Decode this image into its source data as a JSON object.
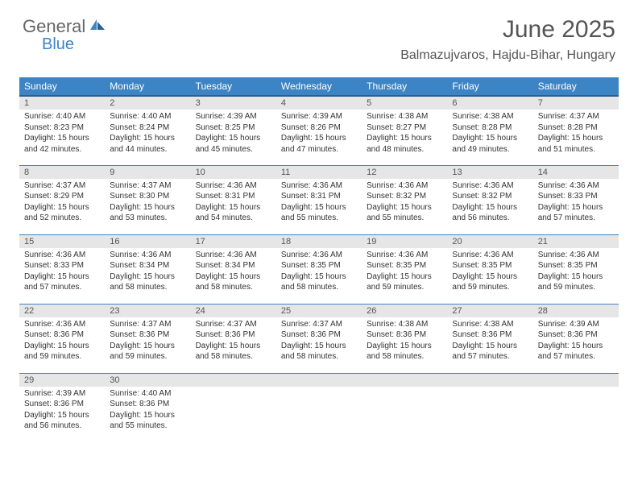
{
  "logo": {
    "text1": "General",
    "text2": "Blue"
  },
  "title": "June 2025",
  "location": "Balmazujvaros, Hajdu-Bihar, Hungary",
  "colors": {
    "header_bg": "#3d84c4",
    "header_border": "#2b5f8e",
    "daynum_bg": "#e6e6e6",
    "text": "#333333",
    "muted": "#555555"
  },
  "weekdays": [
    "Sunday",
    "Monday",
    "Tuesday",
    "Wednesday",
    "Thursday",
    "Friday",
    "Saturday"
  ],
  "weeks": [
    [
      {
        "day": 1,
        "sunrise": "4:40 AM",
        "sunset": "8:23 PM",
        "daylight": "15 hours and 42 minutes."
      },
      {
        "day": 2,
        "sunrise": "4:40 AM",
        "sunset": "8:24 PM",
        "daylight": "15 hours and 44 minutes."
      },
      {
        "day": 3,
        "sunrise": "4:39 AM",
        "sunset": "8:25 PM",
        "daylight": "15 hours and 45 minutes."
      },
      {
        "day": 4,
        "sunrise": "4:39 AM",
        "sunset": "8:26 PM",
        "daylight": "15 hours and 47 minutes."
      },
      {
        "day": 5,
        "sunrise": "4:38 AM",
        "sunset": "8:27 PM",
        "daylight": "15 hours and 48 minutes."
      },
      {
        "day": 6,
        "sunrise": "4:38 AM",
        "sunset": "8:28 PM",
        "daylight": "15 hours and 49 minutes."
      },
      {
        "day": 7,
        "sunrise": "4:37 AM",
        "sunset": "8:28 PM",
        "daylight": "15 hours and 51 minutes."
      }
    ],
    [
      {
        "day": 8,
        "sunrise": "4:37 AM",
        "sunset": "8:29 PM",
        "daylight": "15 hours and 52 minutes."
      },
      {
        "day": 9,
        "sunrise": "4:37 AM",
        "sunset": "8:30 PM",
        "daylight": "15 hours and 53 minutes."
      },
      {
        "day": 10,
        "sunrise": "4:36 AM",
        "sunset": "8:31 PM",
        "daylight": "15 hours and 54 minutes."
      },
      {
        "day": 11,
        "sunrise": "4:36 AM",
        "sunset": "8:31 PM",
        "daylight": "15 hours and 55 minutes."
      },
      {
        "day": 12,
        "sunrise": "4:36 AM",
        "sunset": "8:32 PM",
        "daylight": "15 hours and 55 minutes."
      },
      {
        "day": 13,
        "sunrise": "4:36 AM",
        "sunset": "8:32 PM",
        "daylight": "15 hours and 56 minutes."
      },
      {
        "day": 14,
        "sunrise": "4:36 AM",
        "sunset": "8:33 PM",
        "daylight": "15 hours and 57 minutes."
      }
    ],
    [
      {
        "day": 15,
        "sunrise": "4:36 AM",
        "sunset": "8:33 PM",
        "daylight": "15 hours and 57 minutes."
      },
      {
        "day": 16,
        "sunrise": "4:36 AM",
        "sunset": "8:34 PM",
        "daylight": "15 hours and 58 minutes."
      },
      {
        "day": 17,
        "sunrise": "4:36 AM",
        "sunset": "8:34 PM",
        "daylight": "15 hours and 58 minutes."
      },
      {
        "day": 18,
        "sunrise": "4:36 AM",
        "sunset": "8:35 PM",
        "daylight": "15 hours and 58 minutes."
      },
      {
        "day": 19,
        "sunrise": "4:36 AM",
        "sunset": "8:35 PM",
        "daylight": "15 hours and 59 minutes."
      },
      {
        "day": 20,
        "sunrise": "4:36 AM",
        "sunset": "8:35 PM",
        "daylight": "15 hours and 59 minutes."
      },
      {
        "day": 21,
        "sunrise": "4:36 AM",
        "sunset": "8:35 PM",
        "daylight": "15 hours and 59 minutes."
      }
    ],
    [
      {
        "day": 22,
        "sunrise": "4:36 AM",
        "sunset": "8:36 PM",
        "daylight": "15 hours and 59 minutes."
      },
      {
        "day": 23,
        "sunrise": "4:37 AM",
        "sunset": "8:36 PM",
        "daylight": "15 hours and 59 minutes."
      },
      {
        "day": 24,
        "sunrise": "4:37 AM",
        "sunset": "8:36 PM",
        "daylight": "15 hours and 58 minutes."
      },
      {
        "day": 25,
        "sunrise": "4:37 AM",
        "sunset": "8:36 PM",
        "daylight": "15 hours and 58 minutes."
      },
      {
        "day": 26,
        "sunrise": "4:38 AM",
        "sunset": "8:36 PM",
        "daylight": "15 hours and 58 minutes."
      },
      {
        "day": 27,
        "sunrise": "4:38 AM",
        "sunset": "8:36 PM",
        "daylight": "15 hours and 57 minutes."
      },
      {
        "day": 28,
        "sunrise": "4:39 AM",
        "sunset": "8:36 PM",
        "daylight": "15 hours and 57 minutes."
      }
    ],
    [
      {
        "day": 29,
        "sunrise": "4:39 AM",
        "sunset": "8:36 PM",
        "daylight": "15 hours and 56 minutes."
      },
      {
        "day": 30,
        "sunrise": "4:40 AM",
        "sunset": "8:36 PM",
        "daylight": "15 hours and 55 minutes."
      },
      null,
      null,
      null,
      null,
      null
    ]
  ],
  "labels": {
    "sunrise": "Sunrise:",
    "sunset": "Sunset:",
    "daylight": "Daylight:"
  }
}
